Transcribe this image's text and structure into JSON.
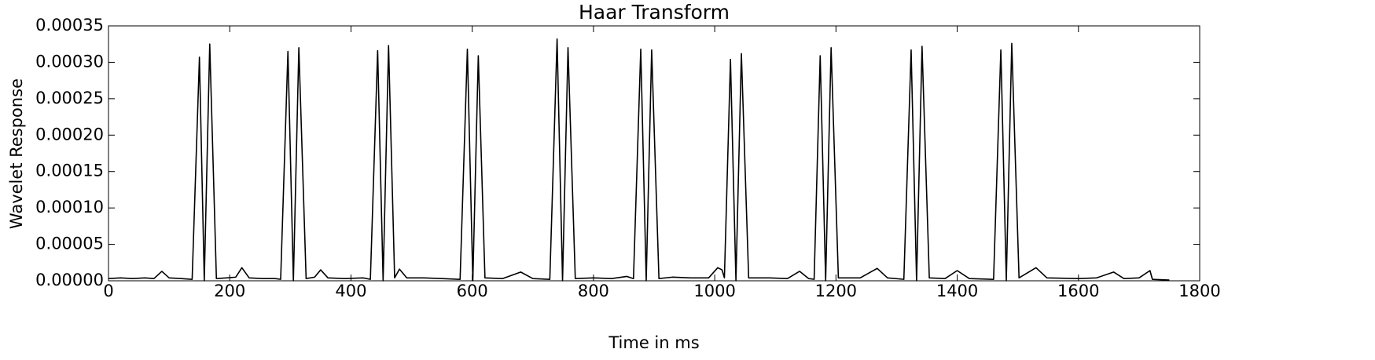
{
  "chart_data": {
    "type": "line",
    "title": "Haar Transform",
    "x_label": "Time in ms",
    "y_label": "Wavelet Response",
    "x": [
      0,
      20,
      40,
      60,
      75,
      88,
      100,
      120,
      138,
      150,
      158,
      167,
      178,
      195,
      210,
      220,
      232,
      255,
      275,
      284,
      296,
      305,
      314,
      326,
      340,
      350,
      362,
      390,
      420,
      432,
      444,
      453,
      462,
      472,
      480,
      492,
      520,
      550,
      580,
      592,
      601,
      610,
      621,
      650,
      680,
      700,
      728,
      740,
      749,
      758,
      770,
      800,
      830,
      855,
      866,
      878,
      887,
      896,
      908,
      930,
      960,
      990,
      1005,
      1012,
      1016,
      1026,
      1035,
      1044,
      1056,
      1090,
      1120,
      1140,
      1155,
      1164,
      1174,
      1183,
      1192,
      1204,
      1240,
      1268,
      1285,
      1312,
      1324,
      1333,
      1342,
      1354,
      1380,
      1400,
      1420,
      1460,
      1472,
      1481,
      1490,
      1502,
      1530,
      1548,
      1600,
      1630,
      1658,
      1675,
      1700,
      1718,
      1722,
      1750
    ],
    "series": [
      {
        "name": "Wavelet Response",
        "color": "#000000",
        "values": [
          3e-06,
          4e-06,
          3e-06,
          4e-06,
          3e-06,
          1.3e-05,
          4e-06,
          3e-06,
          2e-06,
          0.000307,
          0,
          0.000325,
          3e-06,
          4e-06,
          5e-06,
          1.8e-05,
          4e-06,
          3e-06,
          3e-06,
          2e-06,
          0.000315,
          0,
          0.00032,
          3e-06,
          5e-06,
          1.5e-05,
          4e-06,
          3e-06,
          4e-06,
          2e-06,
          0.000316,
          0,
          0.000323,
          4e-06,
          1.6e-05,
          4e-06,
          4e-06,
          3e-06,
          2e-06,
          0.000318,
          0,
          0.000309,
          4e-06,
          3e-06,
          1.2e-05,
          3e-06,
          2e-06,
          0.000332,
          0,
          0.00032,
          3e-06,
          4e-06,
          3e-06,
          6e-06,
          3e-06,
          0.000318,
          0,
          0.000317,
          3e-06,
          5e-06,
          4e-06,
          4e-06,
          1.8e-05,
          1.5e-05,
          4e-06,
          0.000304,
          0,
          0.000312,
          4e-06,
          4e-06,
          3e-06,
          1.3e-05,
          3e-06,
          2e-06,
          0.000309,
          0,
          0.00032,
          4e-06,
          4e-06,
          1.7e-05,
          4e-06,
          2e-06,
          0.000317,
          0,
          0.000322,
          4e-06,
          3e-06,
          1.4e-05,
          3e-06,
          2e-06,
          0.000317,
          0,
          0.000326,
          4e-06,
          1.8e-05,
          4e-06,
          3e-06,
          4e-06,
          1.2e-05,
          3e-06,
          4e-06,
          1.4e-05,
          2e-06,
          1e-06
        ]
      }
    ],
    "xlim": [
      0,
      1800
    ],
    "xticks": [
      0,
      200,
      400,
      600,
      800,
      1000,
      1200,
      1400,
      1600,
      1800
    ],
    "ylim": [
      0,
      0.00035
    ],
    "yticks": [
      {
        "value": 0,
        "label": "0.00000"
      },
      {
        "value": 5e-05,
        "label": "0.00005"
      },
      {
        "value": 0.0001,
        "label": "0.00010"
      },
      {
        "value": 0.00015,
        "label": "0.00015"
      },
      {
        "value": 0.0002,
        "label": "0.00020"
      },
      {
        "value": 0.00025,
        "label": "0.00025"
      },
      {
        "value": 0.0003,
        "label": "0.00030"
      },
      {
        "value": 0.00035,
        "label": "0.00035"
      }
    ],
    "grid": false
  }
}
